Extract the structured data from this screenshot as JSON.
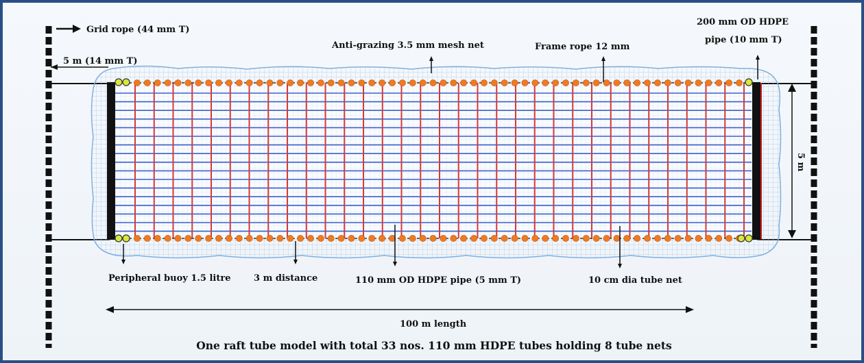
{
  "labels": {
    "grid_rope": "Grid rope (44 mm T)",
    "left_gap": "5 m (14 mm T)",
    "anti_grazing": "Anti-grazing 3.5 mm mesh net",
    "frame_rope": "Frame rope 12 mm",
    "end_pipe_line1": "200 mm OD HDPE",
    "end_pipe_line2": "pipe (10 mm T)",
    "width": "5 m",
    "peripheral_buoy": "Peripheral buoy 1.5 litre",
    "distance": "3 m distance",
    "tube_pipe": "110 mm OD HDPE pipe (5 mm T)",
    "tube_net": "10 cm dia tube net",
    "length": "100 m length"
  },
  "caption": "One raft tube model with total 33 nos. 110 mm HDPE tubes holding 8 tube nets",
  "colors": {
    "frame_border": "#2a4f86",
    "hdpe_tube": "#d33a3a",
    "tube_net_line": "#3a5fd0",
    "buoy": "#ef7a22",
    "corner_buoy": "#d8e83a",
    "end_pipe": "#111111",
    "mesh_net": "#9fc2e6"
  }
}
